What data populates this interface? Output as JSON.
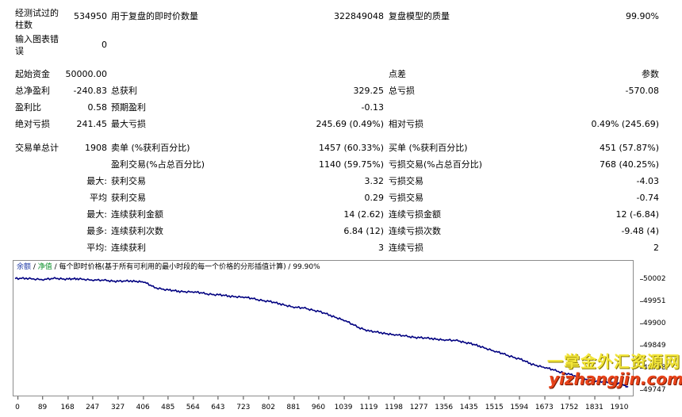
{
  "stats": {
    "bars_tested_label": "经测试过的\n柱数",
    "bars_tested_value": "534950",
    "ticks_label": "用于复盘的即时价数量",
    "ticks_value": "322849048",
    "model_quality_label": "复盘模型的质量",
    "model_quality_value": "99.90%",
    "errors_label": "输入图表错\n误",
    "errors_value": "0",
    "initial_deposit_label": "起始资金",
    "initial_deposit_value": "50000.00",
    "spread_label": "点差",
    "spread_value": "参数",
    "net_profit_label": "总净盈利",
    "net_profit_value": "-240.83",
    "gross_profit_label": "总获利",
    "gross_profit_value": "329.25",
    "gross_loss_label": "总亏损",
    "gross_loss_value": "-570.08",
    "profit_factor_label": "盈利比",
    "profit_factor_value": "0.58",
    "expected_payoff_label": "预期盈利",
    "expected_payoff_value": "-0.13",
    "abs_drawdown_label": "绝对亏损",
    "abs_drawdown_value": "241.45",
    "max_drawdown_label": "最大亏损",
    "max_drawdown_value": "245.69 (0.49%)",
    "rel_drawdown_label": "相对亏损",
    "rel_drawdown_value": "0.49% (245.69)",
    "total_trades_label": "交易单总计",
    "total_trades_value": "1908",
    "short_label": "卖单 (%获利百分比)",
    "short_value": "1457 (60.33%)",
    "long_label": "买单 (%获利百分比)",
    "long_value": "451 (57.87%)",
    "profit_trades_label": "盈利交易(%占总百分比)",
    "profit_trades_value": "1140 (59.75%)",
    "loss_trades_label": "亏损交易(%占总百分比)",
    "loss_trades_value": "768 (40.25%)",
    "largest_prefix": "最大:",
    "largest_profit_label": "获利交易",
    "largest_profit_value": "3.32",
    "largest_loss_label": "亏损交易",
    "largest_loss_value": "-4.03",
    "average_prefix": "平均",
    "average_profit_label": "获利交易",
    "average_profit_value": "0.29",
    "average_loss_label": "亏损交易",
    "average_loss_value": "-0.74",
    "max_cons_prefix": "最大:",
    "max_cons_wins_amount_label": "连续获利金额",
    "max_cons_wins_amount_value": "14 (2.62)",
    "max_cons_losses_amount_label": "连续亏损金额",
    "max_cons_losses_amount_value": "12 (-6.84)",
    "maximal_prefix": "最多:",
    "maximal_cons_profit_label": "连续获利次数",
    "maximal_cons_profit_value": "6.84 (12)",
    "maximal_cons_loss_label": "连续亏损次数",
    "maximal_cons_loss_value": "-9.48 (4)",
    "avg_cons_prefix": "平均:",
    "avg_cons_wins_label": "连续获利",
    "avg_cons_wins_value": "3",
    "avg_cons_losses_label": "连续亏损",
    "avg_cons_losses_value": "2"
  },
  "chart_caption": {
    "balance": "余额",
    "sep1": " / ",
    "equity": "净值",
    "rest": " / 每个即时价格(基于所有可利用的最小时段的每一个价格的分形插值计算) / 99.90%"
  },
  "watermark": {
    "chinese": "一掌金外汇资源网",
    "url": "yizhangjin.com"
  },
  "colors": {
    "line": "#000080",
    "watermark_cn": "#f3e63a",
    "watermark_url": "#e8431a"
  },
  "chart_data": {
    "type": "line",
    "title": "",
    "xlabel": "",
    "ylabel": "",
    "x_ticks": [
      "0",
      "89",
      "168",
      "247",
      "327",
      "406",
      "485",
      "564",
      "643",
      "723",
      "802",
      "881",
      "960",
      "1039",
      "1119",
      "1198",
      "1277",
      "1356",
      "1435",
      "1515",
      "1594",
      "1673",
      "1752",
      "1831",
      "1910"
    ],
    "y_ticks": [
      "50002",
      "49951",
      "49900",
      "49849",
      "49798",
      "49747"
    ],
    "xlim": [
      0,
      1940
    ],
    "ylim": [
      49740,
      50012
    ],
    "series": [
      {
        "x": [
          0,
          40,
          89,
          130,
          168,
          200,
          247,
          290,
          327,
          370,
          406,
          440,
          485,
          520,
          564,
          600,
          643,
          680,
          723,
          760,
          802,
          840,
          881,
          920,
          960,
          1000,
          1039,
          1080,
          1119,
          1160,
          1198,
          1240,
          1277,
          1320,
          1356,
          1400,
          1435,
          1470,
          1515,
          1550,
          1594,
          1630,
          1673,
          1710,
          1752,
          1790,
          1831,
          1870,
          1910,
          1935
        ],
        "y": [
          50000,
          50001,
          49998,
          50001,
          49999,
          50000,
          49997,
          49996,
          49994,
          49995,
          49993,
          49980,
          49974,
          49971,
          49970,
          49966,
          49963,
          49960,
          49958,
          49953,
          49948,
          49942,
          49935,
          49932,
          49925,
          49915,
          49905,
          49890,
          49880,
          49876,
          49872,
          49868,
          49865,
          49863,
          49860,
          49858,
          49852,
          49845,
          49834,
          49826,
          49816,
          49805,
          49797,
          49789,
          49781,
          49772,
          49766,
          49763,
          49760,
          49752
        ]
      }
    ]
  }
}
